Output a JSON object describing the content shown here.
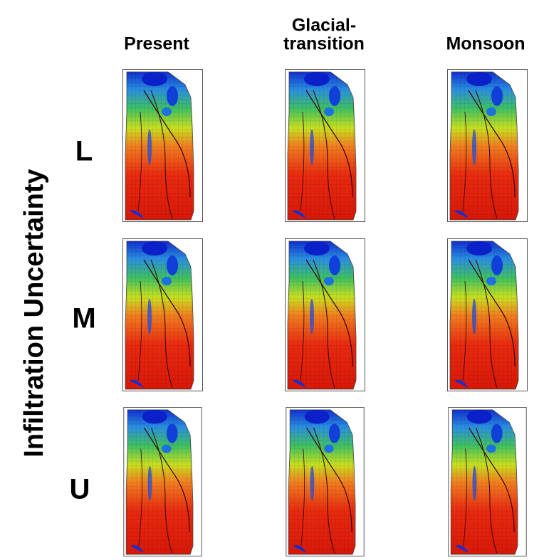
{
  "figure": {
    "y_title": "Infiltration Uncertainty",
    "columns": [
      [
        "Present"
      ],
      [
        "Glacial-",
        "transition"
      ],
      [
        "Monsoon"
      ]
    ],
    "rows": [
      "L",
      "M",
      "U"
    ]
  }
}
